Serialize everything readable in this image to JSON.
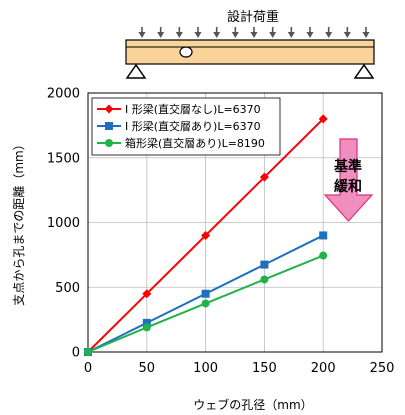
{
  "illustration": {
    "load_label": "設計荷重",
    "beam_fill": "#f9d49a",
    "arrow_count": 13
  },
  "callout": {
    "line1": "基準",
    "line2": "緩和",
    "fill": "#f08ec0",
    "stroke": "#e0307a"
  },
  "chart_data": {
    "type": "line",
    "title": "",
    "xlabel": "ウェブの孔径（mm）",
    "ylabel": "支点から孔までの距離（mm）",
    "xlim": [
      0,
      250
    ],
    "ylim": [
      0,
      2000
    ],
    "xticks": [
      0,
      50,
      100,
      150,
      200,
      250
    ],
    "yticks": [
      0,
      500,
      1000,
      1500,
      2000
    ],
    "grid": true,
    "legend_position": "top-left",
    "series": [
      {
        "name": "I 形梁(直交層なし)L=6370",
        "color": "#ff0000",
        "marker": "diamond",
        "x": [
          0,
          50,
          100,
          150,
          200
        ],
        "y": [
          0,
          450,
          900,
          1350,
          1800
        ]
      },
      {
        "name": "I 形梁(直交層あり)L=6370",
        "color": "#1f6fc1",
        "marker": "square",
        "x": [
          0,
          50,
          100,
          150,
          200
        ],
        "y": [
          0,
          225,
          450,
          675,
          900
        ]
      },
      {
        "name": "箱形梁(直交層あり)L=8190",
        "color": "#22b24c",
        "marker": "circle",
        "x": [
          0,
          50,
          100,
          150,
          200
        ],
        "y": [
          0,
          190,
          375,
          560,
          745
        ]
      }
    ]
  }
}
